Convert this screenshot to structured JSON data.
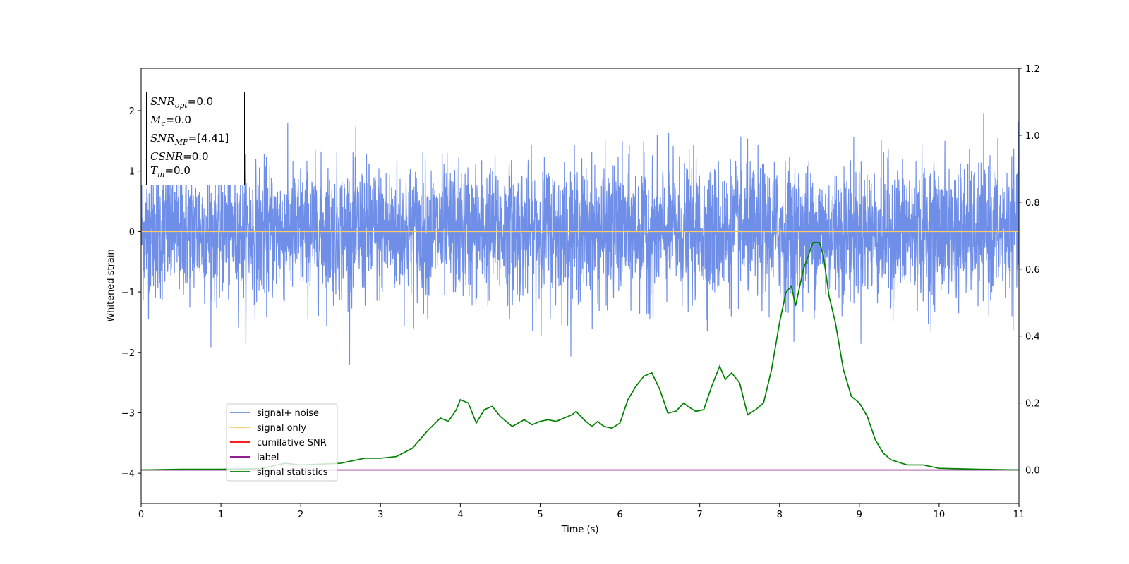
{
  "chart_data": {
    "type": "line",
    "title": "",
    "xlabel": "Time (s)",
    "ylabel": "Whitened strain",
    "ylabel_right": "",
    "xlim": [
      0,
      11
    ],
    "ylim": [
      -4.5,
      2.7
    ],
    "ylim_right": [
      -0.1,
      1.2
    ],
    "x_ticks": [
      "0",
      "1",
      "2",
      "3",
      "4",
      "5",
      "6",
      "7",
      "8",
      "9",
      "10",
      "11"
    ],
    "y_ticks": [
      "2",
      "1",
      "0",
      "−1",
      "−2",
      "−3",
      "−4"
    ],
    "y_ticks_right": [
      "1.2",
      "1.0",
      "0.8",
      "0.6",
      "0.4",
      "0.2",
      "0.0"
    ],
    "grid": false,
    "legend_placement": "lower-left",
    "legend": [
      {
        "label": "signal+ noise",
        "color": "#6f8ee8"
      },
      {
        "label": "signal only",
        "color": "#ffcc66"
      },
      {
        "label": "cumilative SNR",
        "color": "#ff0000"
      },
      {
        "label": "label",
        "color": "#800080"
      },
      {
        "label": "signal statistics",
        "color": "#008000"
      }
    ],
    "series": [
      {
        "name": "signal+ noise",
        "axis": "left",
        "style": "dense noise, amplitude about ±1.4 with spikes up to ±2.3"
      },
      {
        "name": "signal only",
        "axis": "left",
        "x": [
          0,
          11
        ],
        "y": [
          0,
          0
        ]
      },
      {
        "name": "label",
        "axis": "right",
        "x": [
          0,
          11
        ],
        "y": [
          0,
          0
        ]
      },
      {
        "name": "signal statistics",
        "axis": "right",
        "x": [
          0,
          0.5,
          1,
          1.5,
          1.8,
          2.0,
          2.5,
          2.8,
          3.0,
          3.2,
          3.4,
          3.6,
          3.75,
          3.85,
          3.95,
          4.0,
          4.1,
          4.2,
          4.3,
          4.4,
          4.5,
          4.65,
          4.8,
          4.9,
          5.0,
          5.1,
          5.2,
          5.3,
          5.4,
          5.45,
          5.55,
          5.65,
          5.72,
          5.8,
          5.9,
          6.0,
          6.1,
          6.2,
          6.3,
          6.4,
          6.5,
          6.6,
          6.7,
          6.8,
          6.85,
          6.95,
          7.05,
          7.15,
          7.25,
          7.32,
          7.4,
          7.5,
          7.6,
          7.7,
          7.8,
          7.9,
          8.0,
          8.08,
          8.15,
          8.2,
          8.3,
          8.42,
          8.5,
          8.55,
          8.62,
          8.7,
          8.8,
          8.9,
          9.0,
          9.1,
          9.2,
          9.3,
          9.4,
          9.6,
          9.8,
          10.0,
          10.5,
          11.0
        ],
        "y": [
          0.0,
          0.002,
          0.002,
          0.004,
          0.02,
          0.015,
          0.02,
          0.035,
          0.035,
          0.04,
          0.065,
          0.12,
          0.155,
          0.145,
          0.18,
          0.21,
          0.2,
          0.14,
          0.18,
          0.19,
          0.16,
          0.13,
          0.15,
          0.135,
          0.145,
          0.15,
          0.145,
          0.155,
          0.165,
          0.175,
          0.15,
          0.13,
          0.145,
          0.13,
          0.125,
          0.14,
          0.21,
          0.25,
          0.28,
          0.29,
          0.24,
          0.17,
          0.175,
          0.2,
          0.19,
          0.175,
          0.18,
          0.25,
          0.31,
          0.27,
          0.29,
          0.26,
          0.165,
          0.18,
          0.2,
          0.3,
          0.44,
          0.53,
          0.55,
          0.49,
          0.6,
          0.68,
          0.68,
          0.64,
          0.52,
          0.44,
          0.3,
          0.22,
          0.2,
          0.16,
          0.09,
          0.05,
          0.03,
          0.015,
          0.015,
          0.005,
          0.002,
          0.0
        ]
      }
    ]
  },
  "info_box": {
    "snr_opt": {
      "symbol": "SNR",
      "sub": "opt",
      "value": "=0.0"
    },
    "mc": {
      "symbol": "M",
      "sub": "c",
      "value": "=0.0"
    },
    "snr_mf": {
      "symbol": "SNR",
      "sub": "MF",
      "value": "=[4.41]"
    },
    "csnr": {
      "symbol": "CSNR",
      "value": "=0.0"
    },
    "tm": {
      "symbol": "T",
      "sub": "m",
      "value": "=0.0"
    }
  },
  "colors": {
    "noise": "#6f8ee8",
    "signal_only": "#ffcc66",
    "cumulative": "#ff0000",
    "label": "#800080",
    "statistics": "#008000"
  }
}
